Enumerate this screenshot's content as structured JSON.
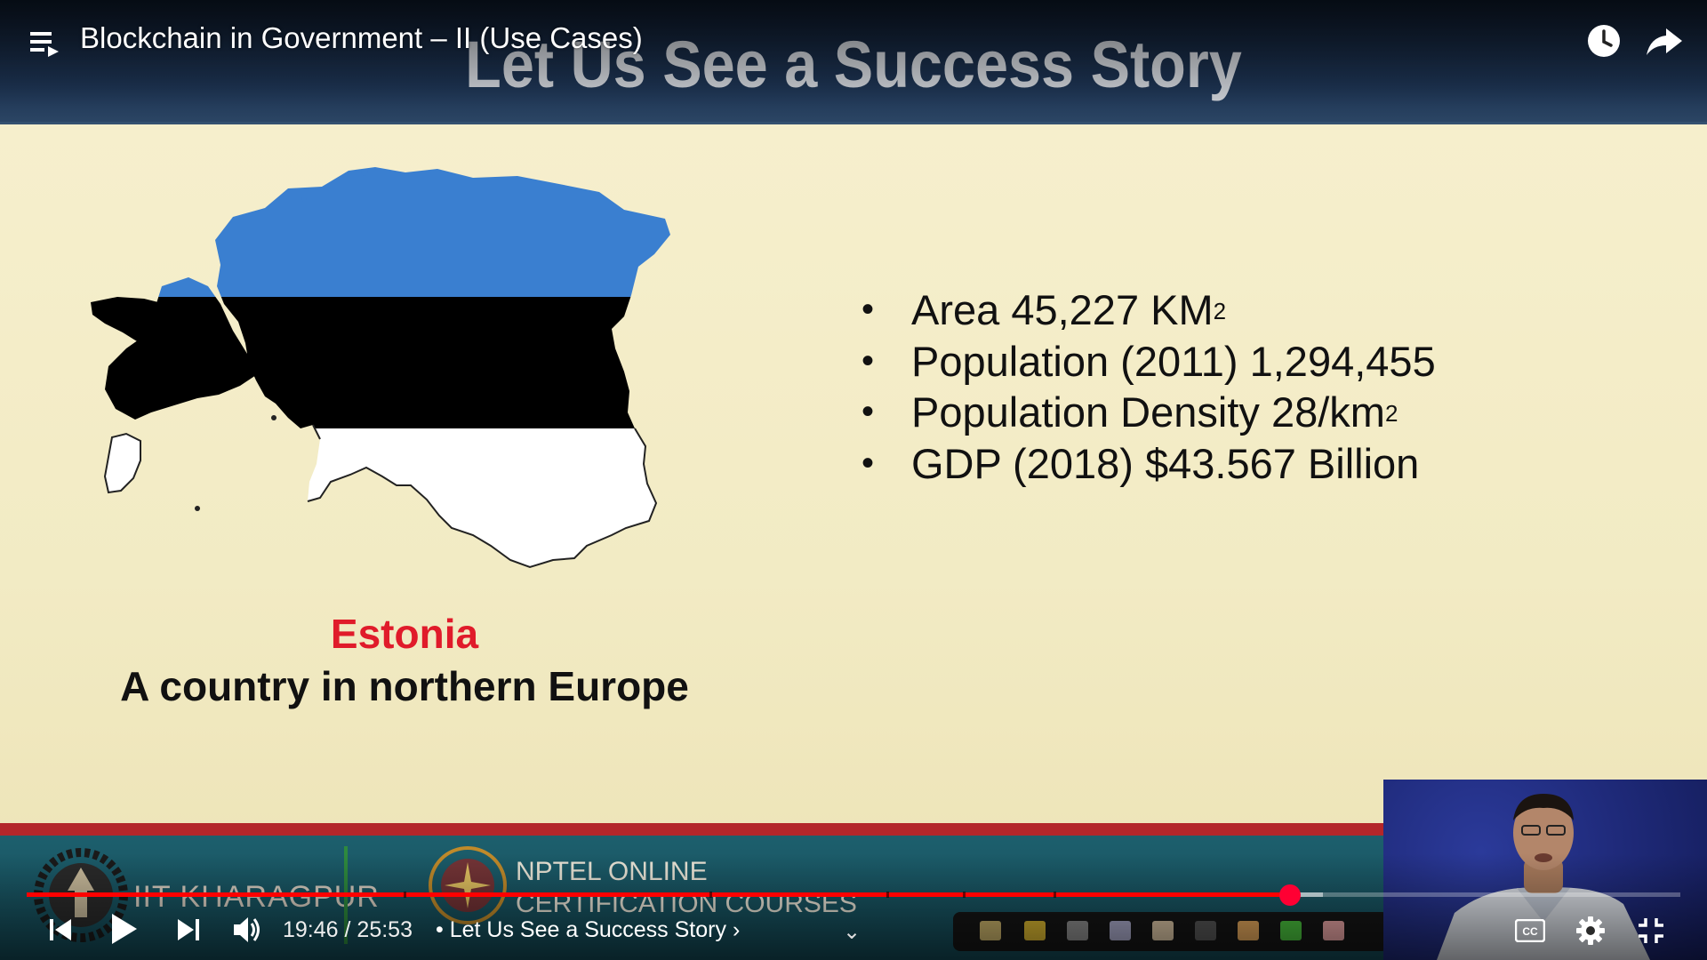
{
  "player": {
    "video_title": "Blockchain in Government – II (Use Cases)",
    "time_current": "19:46",
    "time_separator": "/",
    "time_total": "25:53",
    "chapter_bullet": "•",
    "chapter_title": "Let Us See a Success Story",
    "chapter_arrow": "›",
    "chapter_dropdown_glyph": "⌄",
    "progress_played_fraction": 0.764,
    "progress_buffered_fraction": 0.784,
    "chapter_markers_fraction": [
      0.228,
      0.413,
      0.52,
      0.566,
      0.621
    ],
    "icons": {
      "playlist": "playlist-icon",
      "watch_later": "clock-icon",
      "share": "share-icon",
      "previous": "previous-icon",
      "play": "play-icon",
      "next": "next-icon",
      "volume": "volume-icon",
      "captions": "cc-icon",
      "settings": "gear-icon",
      "exit_fullscreen": "exit-fullscreen-icon"
    },
    "colors": {
      "accent": "#ff0000"
    }
  },
  "slide": {
    "title": "Let Us See a Success Story",
    "country_name": "Estonia",
    "country_description": "A country in northern Europe",
    "bullet_glyph": "•",
    "facts": [
      {
        "text": "Area 45,227 KM",
        "sup": "2"
      },
      {
        "text": "Population (2011) 1,294,455",
        "sup": ""
      },
      {
        "text": "Population Density 28/km",
        "sup": "2"
      },
      {
        "text": "GDP (2018) $43.567 Billion",
        "sup": ""
      }
    ],
    "flag_colors": {
      "top": "#3a7fd0",
      "middle": "#000000",
      "bottom": "#ffffff"
    },
    "colors": {
      "country_name": "#e01b2a",
      "header_bg": "#1c3250"
    }
  },
  "branding": {
    "institute": "IIT KHARAGPUR",
    "nptel_line1": "NPTEL ONLINE",
    "nptel_line2": "CERTIFICATION COURSES"
  }
}
